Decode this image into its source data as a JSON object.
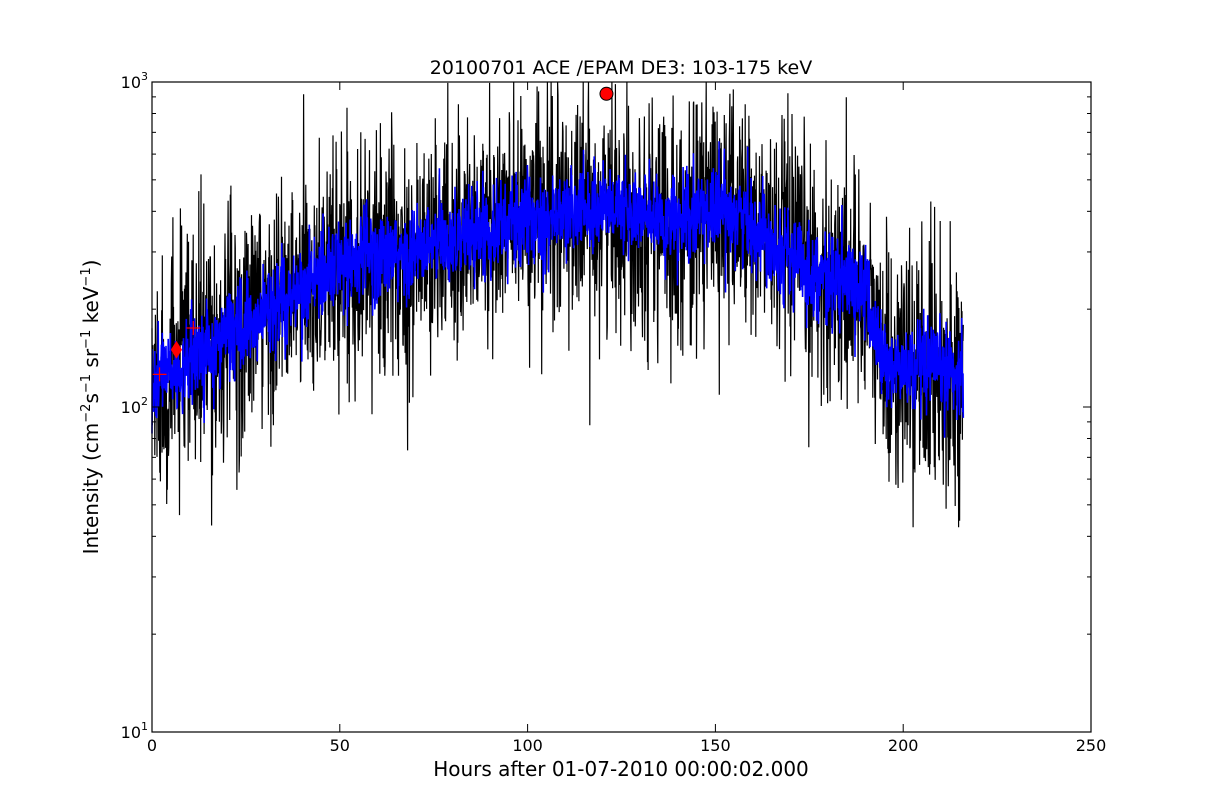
{
  "chart_data": {
    "type": "line",
    "title": "20100701 ACE /EPAM DE3: 103-175 keV",
    "xlabel": "Hours after 01-07-2010 00:00:02.000",
    "ylabel": {
      "prefix": "Intensity (cm",
      "sup1": "−2",
      "part2": "s",
      "sup2": "−1",
      "part3": " sr",
      "sup3": "−1",
      "part4": " keV",
      "sup4": "−1",
      "suffix": ")"
    },
    "xlim": [
      0,
      250
    ],
    "ylim": [
      10,
      1000
    ],
    "y_scale": "log",
    "grid": false,
    "x_ticks": [
      {
        "value": 0,
        "label": "0"
      },
      {
        "value": 50,
        "label": "50"
      },
      {
        "value": 100,
        "label": "100"
      },
      {
        "value": 150,
        "label": "150"
      },
      {
        "value": 200,
        "label": "200"
      },
      {
        "value": 250,
        "label": "250"
      }
    ],
    "y_ticks": [
      {
        "value": 10,
        "base": "10",
        "exp": "1"
      },
      {
        "value": 100,
        "base": "10",
        "exp": "2"
      },
      {
        "value": 1000,
        "base": "10",
        "exp": "3"
      }
    ],
    "x_range_data": [
      0,
      216
    ],
    "series": [
      {
        "style": "black-raw",
        "color": "#000000",
        "spread": 0.42,
        "trend": [
          [
            0,
            118
          ],
          [
            5,
            125
          ],
          [
            10,
            140
          ],
          [
            15,
            145
          ],
          [
            20,
            165
          ],
          [
            25,
            180
          ],
          [
            30,
            195
          ],
          [
            35,
            210
          ],
          [
            40,
            225
          ],
          [
            45,
            265
          ],
          [
            50,
            280
          ],
          [
            55,
            290
          ],
          [
            60,
            295
          ],
          [
            65,
            285
          ],
          [
            70,
            300
          ],
          [
            80,
            330
          ],
          [
            90,
            360
          ],
          [
            100,
            375
          ],
          [
            110,
            390
          ],
          [
            115,
            405
          ],
          [
            120,
            420
          ],
          [
            125,
            410
          ],
          [
            130,
            390
          ],
          [
            135,
            370
          ],
          [
            140,
            360
          ],
          [
            145,
            390
          ],
          [
            150,
            410
          ],
          [
            155,
            400
          ],
          [
            160,
            360
          ],
          [
            165,
            330
          ],
          [
            170,
            290
          ],
          [
            175,
            265
          ],
          [
            180,
            250
          ],
          [
            185,
            240
          ],
          [
            190,
            230
          ],
          [
            192,
            175
          ],
          [
            195,
            135
          ],
          [
            200,
            130
          ],
          [
            210,
            130
          ],
          [
            216,
            130
          ]
        ]
      },
      {
        "style": "blue-smoothed",
        "color": "#0000ff",
        "spread": 0.16,
        "trend": [
          [
            0,
            118
          ],
          [
            5,
            125
          ],
          [
            10,
            140
          ],
          [
            15,
            145
          ],
          [
            20,
            165
          ],
          [
            25,
            180
          ],
          [
            30,
            195
          ],
          [
            35,
            210
          ],
          [
            40,
            225
          ],
          [
            45,
            265
          ],
          [
            50,
            280
          ],
          [
            55,
            290
          ],
          [
            60,
            295
          ],
          [
            65,
            285
          ],
          [
            70,
            300
          ],
          [
            80,
            330
          ],
          [
            90,
            360
          ],
          [
            100,
            375
          ],
          [
            110,
            390
          ],
          [
            115,
            405
          ],
          [
            120,
            420
          ],
          [
            125,
            410
          ],
          [
            130,
            390
          ],
          [
            135,
            370
          ],
          [
            140,
            360
          ],
          [
            145,
            390
          ],
          [
            150,
            410
          ],
          [
            155,
            400
          ],
          [
            160,
            360
          ],
          [
            165,
            330
          ],
          [
            170,
            290
          ],
          [
            175,
            265
          ],
          [
            180,
            250
          ],
          [
            185,
            240
          ],
          [
            190,
            230
          ],
          [
            192,
            175
          ],
          [
            195,
            135
          ],
          [
            200,
            130
          ],
          [
            210,
            130
          ],
          [
            216,
            130
          ]
        ]
      }
    ],
    "markers": [
      {
        "shape": "circle",
        "x": 121,
        "y": 920,
        "color": "#ff0000"
      },
      {
        "shape": "diamond",
        "x": 6.5,
        "y": 150,
        "color": "#ff0000"
      },
      {
        "shape": "plus",
        "x": 2,
        "y": 126,
        "color": "#ff0000"
      },
      {
        "shape": "plus",
        "x": 11,
        "y": 175,
        "color": "#ff0000"
      }
    ]
  }
}
